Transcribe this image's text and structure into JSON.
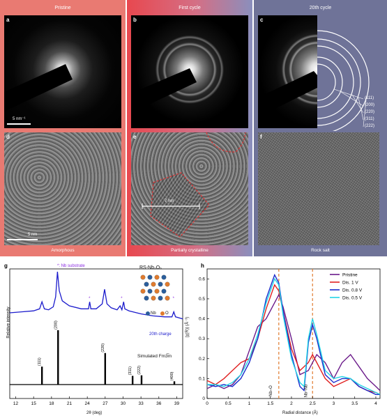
{
  "panels_top": {
    "headers": [
      "Pristine",
      "First cycle",
      "20th cycle"
    ],
    "labels": [
      "a",
      "b",
      "c",
      "d",
      "e",
      "f"
    ],
    "scale_a": "5 nm⁻¹",
    "scale_d": "5 nm",
    "scale_e": "7 nm",
    "captions": [
      "Amorphous",
      "Partially crystalline",
      "Rock salt"
    ],
    "ring_labels": [
      "(111)",
      "(200)",
      "(220)",
      "(311)",
      "(222)"
    ],
    "colors": {
      "pristine": "#e97a72",
      "first_cycle_left": "#e8484f",
      "first_cycle_right": "#8a8fbd",
      "cycle20": "#6f7398"
    }
  },
  "panel_g": {
    "label": "g",
    "substrate_note": "*: Nb substrate",
    "compound": "RS-Nb₂O₅",
    "legend_nb": "Nb",
    "legend_o": "O",
    "charge_label": "20th charge",
    "simulated_label": "Simulated Fm3̅m",
    "ylabel": "Relative intensity",
    "xlabel": "2θ (deg)",
    "colors": {
      "xrd": "#1a1acc",
      "sim": "#000000",
      "nb": "#2b5e9c",
      "o": "#e07b2e",
      "substrate_label": "#8a2be2"
    }
  },
  "panel_h": {
    "label": "h",
    "ylabel": "|χ(R)| (Å⁻³)",
    "xlabel": "Radial distance (Å)",
    "marker_nbo": "Nb–O",
    "marker_nbnb": "Nb–Nb",
    "colors": {
      "pristine": "#6b1a8a",
      "dis1": "#e02020",
      "dis08": "#1a2acc",
      "dis05": "#22d4e6",
      "marker": "#e07b2e"
    }
  },
  "chart_data": [
    {
      "type": "line",
      "title": "",
      "xlabel": "2θ (deg)",
      "ylabel": "Relative intensity",
      "xlim": [
        11,
        40
      ],
      "x_ticks": [
        12,
        15,
        18,
        21,
        24,
        27,
        30,
        33,
        36,
        39
      ],
      "series": [
        {
          "name": "20th charge",
          "x": [
            11,
            13,
            15,
            16,
            16.4,
            16.8,
            17.5,
            18.3,
            18.7,
            19.0,
            19.3,
            19.8,
            21,
            23,
            24.2,
            24.4,
            24.6,
            25.5,
            26.5,
            26.9,
            27.3,
            28,
            29,
            29.5,
            29.8,
            30.1,
            30.3,
            31,
            33,
            35,
            37,
            38.2,
            38.5,
            38.8,
            40
          ],
          "y": [
            0.18,
            0.2,
            0.22,
            0.26,
            0.4,
            0.26,
            0.24,
            0.3,
            0.5,
            1.0,
            0.62,
            0.42,
            0.32,
            0.26,
            0.26,
            0.4,
            0.26,
            0.26,
            0.36,
            0.65,
            0.36,
            0.28,
            0.24,
            0.32,
            0.24,
            0.4,
            0.26,
            0.22,
            0.16,
            0.12,
            0.1,
            0.1,
            0.2,
            0.1,
            0.06
          ]
        },
        {
          "name": "Simulated Fm3̅m",
          "peaks_x": [
            16.4,
            19.1,
            27.0,
            31.6,
            33.1,
            38.6
          ],
          "peaks_y": [
            0.33,
            1.0,
            0.58,
            0.16,
            0.17,
            0.06
          ],
          "peak_labels": [
            "(111)",
            "(200)",
            "(220)",
            "(311)",
            "(222)",
            "(400)"
          ]
        }
      ],
      "annotations": [
        "*",
        "*",
        "*"
      ]
    },
    {
      "type": "line",
      "title": "",
      "xlabel": "Radial distance (Å)",
      "ylabel": "|χ(R)| (Å⁻³)",
      "xlim": [
        0,
        4.1
      ],
      "ylim": [
        0,
        0.65
      ],
      "x_ticks": [
        0,
        0.5,
        1.0,
        1.5,
        2.0,
        2.5,
        3.0,
        3.5,
        4.0
      ],
      "y_ticks": [
        0,
        0.1,
        0.2,
        0.3,
        0.4,
        0.5,
        0.6
      ],
      "legend_position": "top-right",
      "vlines": [
        1.7,
        2.5
      ],
      "series": [
        {
          "name": "Pristine",
          "x": [
            0,
            0.2,
            0.4,
            0.6,
            0.8,
            1.0,
            1.2,
            1.4,
            1.6,
            1.7,
            1.8,
            2.0,
            2.2,
            2.4,
            2.6,
            2.8,
            3.0,
            3.2,
            3.4,
            3.6,
            3.8,
            4.0,
            4.1
          ],
          "y": [
            0.05,
            0.07,
            0.05,
            0.07,
            0.12,
            0.24,
            0.36,
            0.4,
            0.48,
            0.52,
            0.46,
            0.3,
            0.12,
            0.14,
            0.22,
            0.18,
            0.1,
            0.18,
            0.22,
            0.16,
            0.1,
            0.06,
            0.04
          ]
        },
        {
          "name": "Dis. 1 V",
          "x": [
            0,
            0.2,
            0.4,
            0.6,
            0.8,
            1.0,
            1.2,
            1.4,
            1.6,
            1.7,
            1.8,
            2.0,
            2.2,
            2.4,
            2.5,
            2.6,
            2.8,
            3.0,
            3.2,
            3.4,
            3.6,
            3.8,
            4.0,
            4.1
          ],
          "y": [
            0.09,
            0.07,
            0.1,
            0.14,
            0.18,
            0.2,
            0.3,
            0.45,
            0.57,
            0.54,
            0.44,
            0.25,
            0.14,
            0.18,
            0.22,
            0.18,
            0.1,
            0.06,
            0.08,
            0.1,
            0.06,
            0.04,
            0.03,
            0.02
          ]
        },
        {
          "name": "Dis. 0.8 V",
          "x": [
            0,
            0.2,
            0.4,
            0.6,
            0.8,
            1.0,
            1.2,
            1.4,
            1.6,
            1.7,
            1.8,
            2.0,
            2.2,
            2.3,
            2.4,
            2.5,
            2.6,
            2.8,
            3.0,
            3.2,
            3.4,
            3.6,
            3.8,
            4.0,
            4.1
          ],
          "y": [
            0.07,
            0.06,
            0.07,
            0.06,
            0.1,
            0.18,
            0.3,
            0.5,
            0.62,
            0.58,
            0.44,
            0.22,
            0.06,
            0.04,
            0.28,
            0.37,
            0.3,
            0.12,
            0.08,
            0.1,
            0.1,
            0.06,
            0.04,
            0.02,
            0.02
          ]
        },
        {
          "name": "Dis. 0.5 V",
          "x": [
            0,
            0.2,
            0.4,
            0.6,
            0.8,
            1.0,
            1.2,
            1.4,
            1.6,
            1.7,
            1.8,
            2.0,
            2.2,
            2.3,
            2.4,
            2.5,
            2.6,
            2.8,
            3.0,
            3.2,
            3.4,
            3.6,
            3.8,
            4.0,
            4.1
          ],
          "y": [
            0.07,
            0.07,
            0.06,
            0.08,
            0.12,
            0.2,
            0.32,
            0.48,
            0.6,
            0.57,
            0.42,
            0.2,
            0.08,
            0.06,
            0.3,
            0.4,
            0.32,
            0.14,
            0.1,
            0.11,
            0.1,
            0.07,
            0.05,
            0.03,
            0.02
          ]
        }
      ]
    }
  ]
}
